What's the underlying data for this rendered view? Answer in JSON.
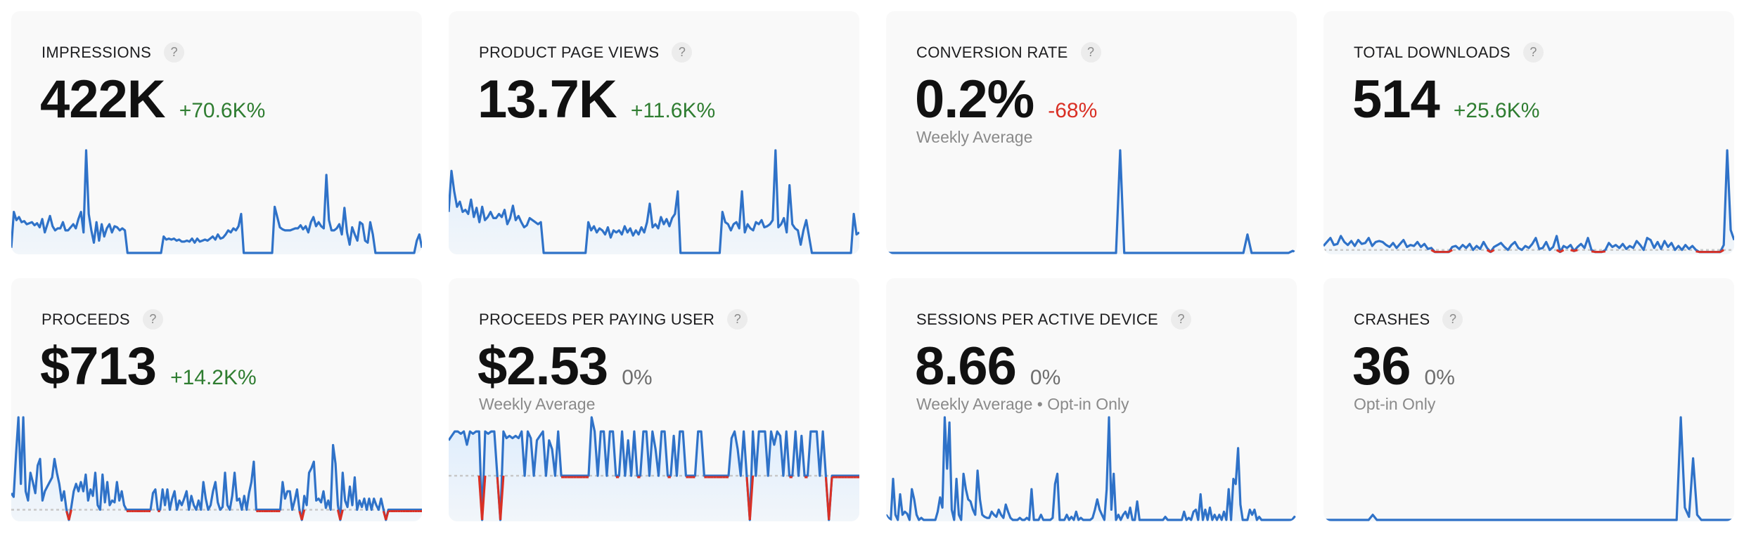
{
  "colors": {
    "line": "#2f72c8",
    "fill": "#dcecfd",
    "negative": "#d93025",
    "positive_delta": "#2f7d31",
    "negative_delta": "#d93025",
    "neutral_delta": "#6e6e6e",
    "baseline": "#c8c8c8"
  },
  "help_icon": "?",
  "cards": [
    {
      "title": "IMPRESSIONS",
      "value": "422K",
      "delta": "+70.6K%",
      "delta_trend": "positive",
      "subtitle": "",
      "show_baseline": false,
      "ymin": 0,
      "series": [
        5,
        40,
        32,
        35,
        30,
        31,
        28,
        29,
        30,
        27,
        29,
        25,
        33,
        20,
        28,
        36,
        26,
        22,
        24,
        24,
        30,
        22,
        22,
        25,
        28,
        24,
        33,
        40,
        20,
        100,
        38,
        22,
        10,
        30,
        12,
        28,
        16,
        24,
        28,
        20,
        26,
        25,
        22,
        24,
        22,
        0,
        0,
        0,
        0,
        0,
        0,
        0,
        0,
        0,
        0,
        0,
        0,
        0,
        0,
        16,
        13,
        14,
        13,
        14,
        12,
        13,
        11,
        11,
        12,
        11,
        14,
        10,
        14,
        11,
        12,
        13,
        12,
        14,
        16,
        13,
        18,
        14,
        15,
        18,
        22,
        20,
        24,
        22,
        26,
        38,
        0,
        0,
        0,
        0,
        0,
        0,
        0,
        0,
        0,
        0,
        0,
        0,
        45,
        35,
        25,
        23,
        22,
        22,
        22,
        23,
        24,
        24,
        27,
        23,
        26,
        20,
        30,
        35,
        26,
        30,
        26,
        24,
        76,
        32,
        22,
        22,
        24,
        28,
        18,
        44,
        20,
        8,
        25,
        18,
        12,
        30,
        28,
        12,
        10,
        30,
        18,
        0,
        0,
        0,
        0,
        0,
        0,
        0,
        0,
        0,
        0,
        0,
        0,
        0,
        0,
        0,
        0,
        12,
        18,
        5
      ]
    },
    {
      "title": "PRODUCT PAGE VIEWS",
      "value": "13.7K",
      "delta": "+11.6K%",
      "delta_trend": "positive",
      "subtitle": "",
      "show_baseline": false,
      "ymin": 0,
      "series": [
        40,
        80,
        60,
        45,
        50,
        40,
        42,
        38,
        52,
        35,
        44,
        30,
        45,
        32,
        35,
        40,
        34,
        34,
        38,
        35,
        42,
        28,
        34,
        46,
        32,
        36,
        30,
        25,
        27,
        34,
        32,
        30,
        28,
        30,
        0,
        0,
        0,
        0,
        0,
        0,
        0,
        0,
        0,
        0,
        0,
        0,
        0,
        0,
        0,
        0,
        30,
        22,
        26,
        20,
        24,
        22,
        18,
        25,
        15,
        22,
        20,
        22,
        18,
        26,
        20,
        24,
        17,
        22,
        18,
        25,
        20,
        30,
        48,
        25,
        28,
        24,
        35,
        28,
        33,
        26,
        34,
        38,
        60,
        0,
        0,
        0,
        0,
        0,
        0,
        0,
        0,
        0,
        0,
        0,
        0,
        0,
        0,
        0,
        40,
        30,
        28,
        22,
        28,
        30,
        24,
        60,
        20,
        28,
        24,
        22,
        30,
        28,
        32,
        25,
        26,
        28,
        32,
        100,
        25,
        28,
        34,
        20,
        66,
        28,
        24,
        22,
        8,
        22,
        32,
        16,
        0,
        0,
        0,
        0,
        0,
        0,
        0,
        0,
        0,
        0,
        0,
        0,
        0,
        0,
        0,
        38,
        18,
        20
      ]
    },
    {
      "title": "CONVERSION RATE",
      "value": "0.2%",
      "delta": "-68%",
      "delta_trend": "negative",
      "subtitle": "Weekly Average",
      "show_baseline": false,
      "ymin": 0,
      "series": [
        0,
        0,
        0,
        0,
        0,
        0,
        0,
        0,
        0,
        0,
        0,
        0,
        0,
        0,
        0,
        0,
        0,
        0,
        0,
        0,
        0,
        0,
        0,
        0,
        0,
        0,
        0,
        0,
        0,
        0,
        0,
        0,
        0,
        0,
        0,
        0,
        0,
        0,
        0,
        0,
        0,
        0,
        0,
        0,
        0,
        0,
        0,
        0,
        0,
        0,
        0,
        0,
        0,
        0,
        0,
        0,
        0,
        100,
        0,
        0,
        0,
        0,
        0,
        0,
        0,
        0,
        0,
        0,
        0,
        0,
        0,
        0,
        0,
        0,
        0,
        0,
        0,
        0,
        0,
        0,
        0,
        0,
        0,
        0,
        0,
        0,
        0,
        0,
        18,
        0,
        0,
        0,
        0,
        0,
        0,
        0,
        0,
        0,
        0,
        2,
        0
      ]
    },
    {
      "title": "TOTAL DOWNLOADS",
      "value": "514",
      "delta": "+25.6K%",
      "delta_trend": "positive",
      "subtitle": "",
      "show_baseline": true,
      "ymin": -3,
      "series": [
        4,
        8,
        12,
        5,
        6,
        14,
        8,
        5,
        9,
        4,
        10,
        6,
        7,
        12,
        4,
        8,
        9,
        8,
        5,
        3,
        7,
        2,
        6,
        10,
        3,
        5,
        4,
        8,
        3,
        6,
        1,
        2,
        -2,
        -2,
        -2,
        -2,
        -2,
        3,
        4,
        1,
        5,
        2,
        6,
        0,
        4,
        1,
        8,
        2,
        -2,
        3,
        5,
        7,
        3,
        0,
        5,
        8,
        2,
        0,
        4,
        2,
        6,
        12,
        1,
        2,
        8,
        0,
        3,
        14,
        -2,
        4,
        2,
        5,
        -1,
        3,
        6,
        2,
        12,
        0,
        -2,
        -2,
        -2,
        0,
        7,
        3,
        5,
        2,
        6,
        1,
        4,
        2,
        9,
        5,
        0,
        12,
        10,
        2,
        8,
        1,
        9,
        3,
        7,
        0,
        4,
        0,
        5,
        1,
        4,
        0,
        -2,
        -2,
        -2,
        -2,
        -2,
        -2,
        -2,
        5,
        100,
        20,
        10
      ]
    },
    {
      "title": "PROCEEDS",
      "value": "$713",
      "delta": "+14.2K%",
      "delta_trend": "positive",
      "subtitle": "",
      "show_baseline": true,
      "ymin": -11,
      "series": [
        18,
        14,
        60,
        100,
        28,
        100,
        20,
        10,
        40,
        30,
        18,
        48,
        55,
        10,
        20,
        25,
        30,
        35,
        55,
        40,
        28,
        10,
        20,
        0,
        -11,
        3,
        20,
        28,
        20,
        30,
        20,
        38,
        10,
        22,
        15,
        40,
        5,
        0,
        38,
        8,
        30,
        5,
        10,
        8,
        30,
        10,
        20,
        5,
        0,
        0,
        0,
        0,
        0,
        0,
        0,
        0,
        0,
        0,
        0,
        18,
        22,
        0,
        0,
        22,
        5,
        22,
        0,
        12,
        20,
        0,
        10,
        5,
        12,
        20,
        0,
        15,
        5,
        0,
        10,
        0,
        30,
        12,
        0,
        5,
        20,
        30,
        8,
        0,
        3,
        40,
        5,
        0,
        15,
        40,
        10,
        12,
        0,
        15,
        0,
        18,
        30,
        52,
        0,
        0,
        0,
        0,
        0,
        0,
        0,
        0,
        0,
        0,
        0,
        30,
        12,
        20,
        20,
        0,
        10,
        22,
        0,
        -11,
        15,
        5,
        40,
        45,
        52,
        10,
        12,
        8,
        20,
        2,
        10,
        0,
        70,
        50,
        5,
        -11,
        40,
        10,
        3,
        25,
        5,
        35,
        0,
        10,
        3,
        12,
        0,
        12,
        0,
        12,
        5,
        0,
        12,
        0,
        -11,
        0,
        0,
        0,
        0,
        0,
        0,
        0,
        0,
        0,
        0,
        0,
        0,
        0,
        0,
        0
      ]
    },
    {
      "title": "PROCEEDS PER PAYING USER",
      "value": "$2.53",
      "delta": "0%",
      "delta_trend": "neutral",
      "subtitle": "Weekly Average",
      "show_baseline": true,
      "ymin": -100,
      "series": [
        80,
        90,
        100,
        100,
        95,
        100,
        70,
        100,
        95,
        100,
        100,
        -100,
        100,
        95,
        100,
        100,
        0,
        -100,
        100,
        85,
        90,
        85,
        90,
        85,
        100,
        0,
        100,
        85,
        0,
        80,
        90,
        100,
        0,
        80,
        60,
        0,
        100,
        0,
        0,
        0,
        0,
        0,
        0,
        0,
        0,
        0,
        0,
        132,
        100,
        0,
        100,
        100,
        0,
        100,
        100,
        0,
        0,
        100,
        0,
        80,
        0,
        100,
        0,
        0,
        100,
        100,
        0,
        100,
        60,
        0,
        100,
        100,
        0,
        0,
        90,
        0,
        100,
        100,
        0,
        0,
        0,
        0,
        100,
        100,
        0,
        0,
        0,
        0,
        0,
        0,
        0,
        0,
        0,
        85,
        100,
        60,
        0,
        100,
        0,
        -100,
        100,
        0,
        100,
        100,
        100,
        0,
        100,
        70,
        100,
        90,
        0,
        100,
        0,
        0,
        100,
        0,
        90,
        0,
        0,
        100,
        100,
        100,
        0,
        100,
        0,
        -100,
        0,
        0,
        0,
        0,
        0,
        0,
        0,
        0,
        0,
        0
      ]
    },
    {
      "title": "SESSIONS PER ACTIVE DEVICE",
      "value": "8.66",
      "delta": "0%",
      "delta_trend": "neutral",
      "subtitle": "Weekly Average • Opt-in Only",
      "show_baseline": false,
      "ymin": 0,
      "series": [
        5,
        2,
        0,
        40,
        5,
        0,
        25,
        5,
        8,
        6,
        0,
        30,
        20,
        5,
        0,
        2,
        0,
        0,
        0,
        0,
        0,
        0,
        8,
        22,
        12,
        100,
        50,
        95,
        10,
        0,
        40,
        5,
        0,
        45,
        30,
        20,
        18,
        10,
        5,
        48,
        20,
        5,
        3,
        2,
        2,
        8,
        5,
        3,
        10,
        5,
        2,
        15,
        8,
        2,
        0,
        0,
        0,
        2,
        0,
        0,
        2,
        0,
        30,
        0,
        0,
        0,
        5,
        0,
        0,
        0,
        0,
        2,
        35,
        45,
        0,
        0,
        0,
        5,
        0,
        3,
        0,
        8,
        0,
        2,
        0,
        0,
        0,
        0,
        2,
        10,
        20,
        10,
        5,
        0,
        30,
        100,
        10,
        45,
        0,
        5,
        0,
        5,
        8,
        2,
        12,
        0,
        0,
        18,
        0,
        0,
        0,
        0,
        0,
        0,
        0,
        0,
        0,
        0,
        0,
        3,
        0,
        0,
        0,
        0,
        0,
        0,
        0,
        8,
        0,
        2,
        0,
        8,
        10,
        0,
        25,
        0,
        10,
        0,
        12,
        0,
        5,
        0,
        5,
        0,
        8,
        0,
        30,
        0,
        40,
        35,
        70,
        15,
        0,
        0,
        0,
        10,
        5,
        10,
        0,
        3,
        0,
        0,
        0,
        0,
        0,
        0,
        0,
        0,
        0,
        0,
        0,
        0,
        0,
        0,
        3,
        0
      ]
    },
    {
      "title": "CRASHES",
      "value": "36",
      "delta": "0%",
      "delta_trend": "neutral",
      "subtitle": "Opt-in Only",
      "show_baseline": false,
      "ymin": 0,
      "series": [
        0,
        0,
        0,
        0,
        0,
        0,
        0,
        0,
        0,
        0,
        0,
        0,
        5,
        0,
        0,
        0,
        0,
        0,
        0,
        0,
        0,
        0,
        0,
        0,
        0,
        0,
        0,
        0,
        0,
        0,
        0,
        0,
        0,
        0,
        0,
        0,
        0,
        0,
        0,
        0,
        0,
        0,
        0,
        0,
        0,
        0,
        0,
        0,
        0,
        0,
        0,
        0,
        0,
        0,
        0,
        0,
        0,
        0,
        0,
        0,
        0,
        0,
        0,
        0,
        0,
        0,
        0,
        0,
        0,
        0,
        0,
        0,
        0,
        0,
        0,
        0,
        0,
        0,
        0,
        0,
        0,
        0,
        0,
        0,
        0,
        0,
        0,
        100,
        12,
        3,
        60,
        5,
        0,
        0,
        0,
        0,
        0,
        0,
        0,
        0,
        0
      ]
    }
  ]
}
